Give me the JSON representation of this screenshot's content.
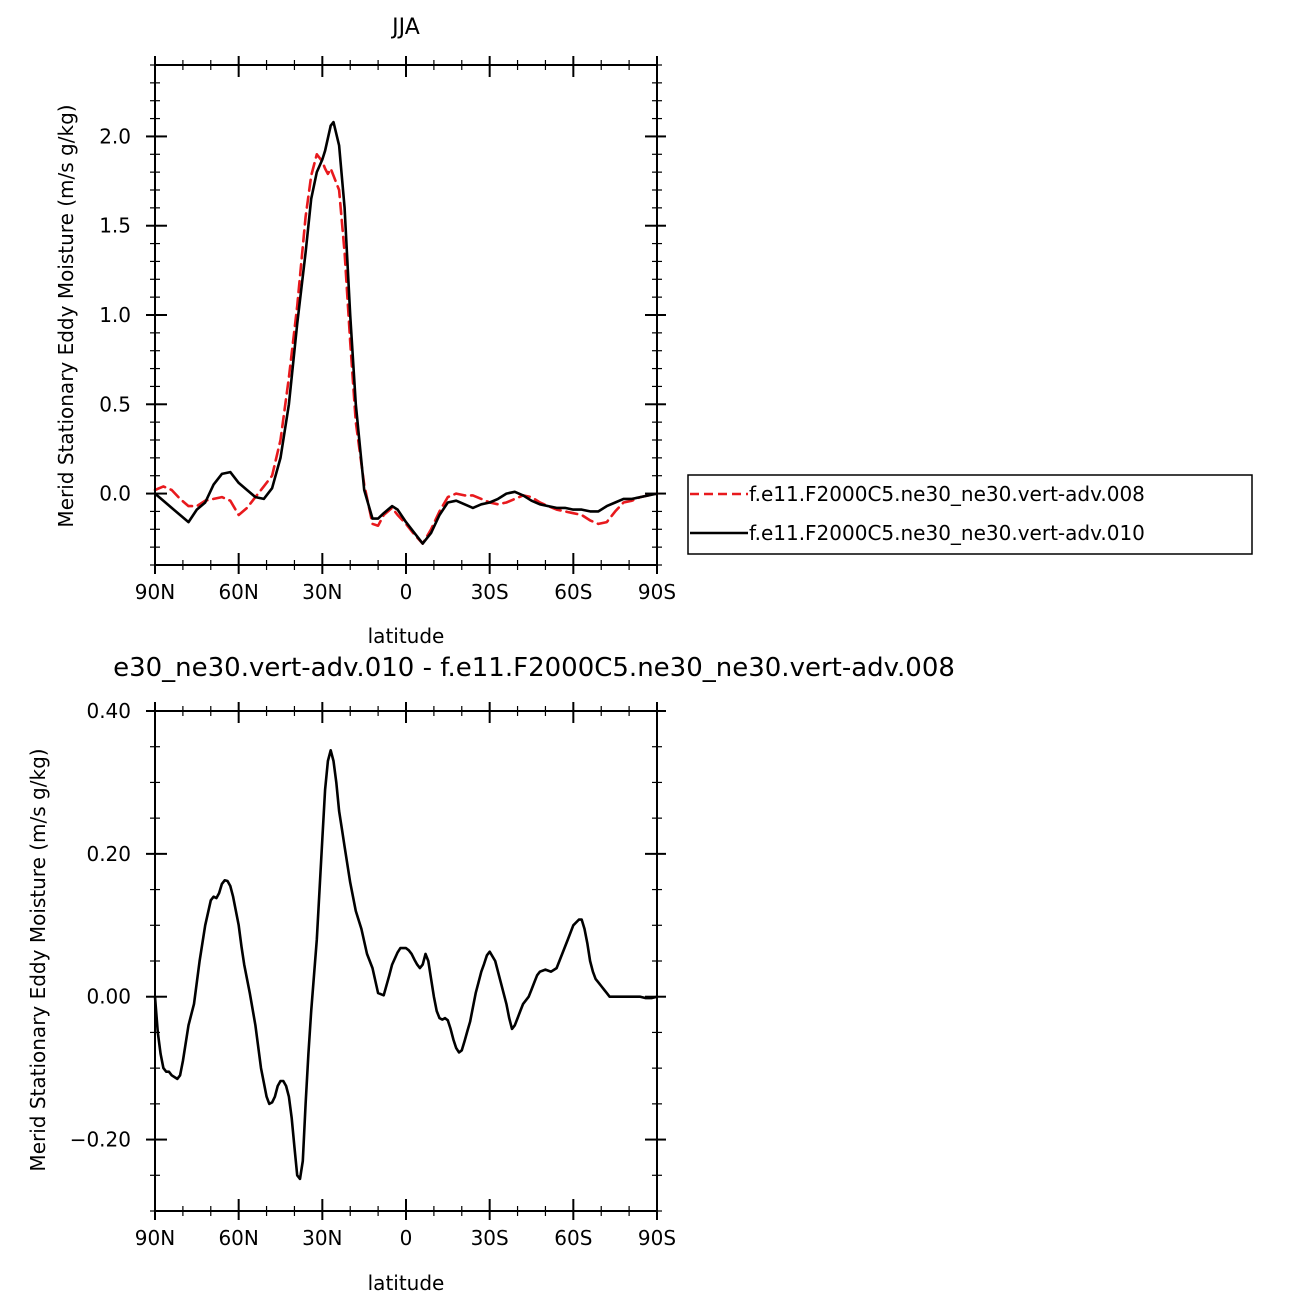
{
  "chart_data": [
    {
      "type": "line",
      "title": "JJA",
      "xlabel": "latitude",
      "ylabel": "Merid Stationary Eddy Moisture (m/s g/kg)",
      "xlim": [
        90,
        -90
      ],
      "ylim": [
        -0.4,
        2.4
      ],
      "x_ticks": [
        {
          "value": 90,
          "label": "90N"
        },
        {
          "value": 60,
          "label": "60N"
        },
        {
          "value": 30,
          "label": "30N"
        },
        {
          "value": 0,
          "label": "0"
        },
        {
          "value": -30,
          "label": "30S"
        },
        {
          "value": -60,
          "label": "60S"
        },
        {
          "value": -90,
          "label": "90S"
        }
      ],
      "y_ticks": [
        {
          "value": 0.0,
          "label": "0.0"
        },
        {
          "value": 0.5,
          "label": "0.5"
        },
        {
          "value": 1.0,
          "label": "1.0"
        },
        {
          "value": 1.5,
          "label": "1.5"
        },
        {
          "value": 2.0,
          "label": "2.0"
        }
      ],
      "legend": "right",
      "series": [
        {
          "name": "f.e11.F2000C5.ne30_ne30.vert-adv.008",
          "color": "#e8191d",
          "dash": "dashed",
          "x": [
            90,
            87,
            84,
            81,
            78,
            75,
            72,
            69,
            66,
            63,
            60,
            57,
            54,
            51,
            48,
            45,
            42,
            39,
            36,
            34,
            32,
            30,
            29,
            28,
            27,
            26,
            24,
            22,
            20,
            18,
            15,
            12,
            10,
            8,
            5,
            3,
            0,
            -3,
            -6,
            -9,
            -12,
            -15,
            -18,
            -21,
            -24,
            -27,
            -30,
            -33,
            -36,
            -39,
            -42,
            -45,
            -48,
            -51,
            -54,
            -57,
            -60,
            -63,
            -66,
            -69,
            -72,
            -75,
            -78,
            -81,
            -84,
            -87,
            -90
          ],
          "values": [
            0.02,
            0.04,
            0.02,
            -0.03,
            -0.07,
            -0.07,
            -0.04,
            -0.03,
            -0.02,
            -0.04,
            -0.12,
            -0.08,
            -0.02,
            0.04,
            0.1,
            0.3,
            0.65,
            1.05,
            1.55,
            1.78,
            1.9,
            1.86,
            1.82,
            1.79,
            1.82,
            1.78,
            1.7,
            1.35,
            0.85,
            0.4,
            0.05,
            -0.17,
            -0.18,
            -0.12,
            -0.08,
            -0.12,
            -0.17,
            -0.23,
            -0.28,
            -0.2,
            -0.1,
            -0.02,
            0.0,
            -0.01,
            -0.01,
            -0.03,
            -0.05,
            -0.06,
            -0.05,
            -0.03,
            -0.01,
            -0.02,
            -0.05,
            -0.07,
            -0.09,
            -0.1,
            -0.11,
            -0.12,
            -0.15,
            -0.17,
            -0.16,
            -0.1,
            -0.05,
            -0.04,
            -0.02,
            -0.01,
            0.0
          ]
        },
        {
          "name": "f.e11.F2000C5.ne30_ne30.vert-adv.010",
          "color": "#000000",
          "dash": "solid",
          "x": [
            90,
            87,
            84,
            81,
            78,
            75,
            72,
            69,
            66,
            63,
            60,
            57,
            54,
            51,
            48,
            45,
            42,
            39,
            36,
            34,
            32,
            30,
            29,
            28,
            27,
            26,
            24,
            22,
            20,
            18,
            15,
            12,
            10,
            8,
            5,
            3,
            0,
            -3,
            -6,
            -9,
            -12,
            -15,
            -18,
            -21,
            -24,
            -27,
            -30,
            -33,
            -36,
            -39,
            -42,
            -45,
            -48,
            -51,
            -54,
            -57,
            -60,
            -63,
            -66,
            -69,
            -72,
            -75,
            -78,
            -81,
            -84,
            -87,
            -90
          ],
          "values": [
            0.0,
            -0.04,
            -0.08,
            -0.12,
            -0.16,
            -0.09,
            -0.05,
            0.05,
            0.11,
            0.12,
            0.06,
            0.02,
            -0.02,
            -0.03,
            0.03,
            0.2,
            0.5,
            0.95,
            1.35,
            1.65,
            1.8,
            1.87,
            1.92,
            1.99,
            2.06,
            2.08,
            1.95,
            1.6,
            1.0,
            0.5,
            0.02,
            -0.14,
            -0.14,
            -0.11,
            -0.07,
            -0.09,
            -0.16,
            -0.22,
            -0.28,
            -0.22,
            -0.12,
            -0.05,
            -0.04,
            -0.06,
            -0.08,
            -0.06,
            -0.05,
            -0.03,
            0.0,
            0.01,
            -0.01,
            -0.04,
            -0.06,
            -0.07,
            -0.08,
            -0.08,
            -0.09,
            -0.09,
            -0.1,
            -0.1,
            -0.07,
            -0.05,
            -0.03,
            -0.03,
            -0.02,
            -0.01,
            0.0
          ]
        }
      ]
    },
    {
      "type": "line",
      "title": "e30_ne30.vert-adv.010 - f.e11.F2000C5.ne30_ne30.vert-adv.008",
      "xlabel": "latitude",
      "ylabel": "Merid Stationary Eddy Moisture (m/s g/kg)",
      "xlim": [
        90,
        -90
      ],
      "ylim": [
        -0.3,
        0.4
      ],
      "x_ticks": [
        {
          "value": 90,
          "label": "90N"
        },
        {
          "value": 60,
          "label": "60N"
        },
        {
          "value": 30,
          "label": "30N"
        },
        {
          "value": 0,
          "label": "0"
        },
        {
          "value": -30,
          "label": "30S"
        },
        {
          "value": -60,
          "label": "60S"
        },
        {
          "value": -90,
          "label": "90S"
        }
      ],
      "y_ticks": [
        {
          "value": -0.2,
          "label": "-0.20"
        },
        {
          "value": 0.0,
          "label": "0.00"
        },
        {
          "value": 0.2,
          "label": "0.20"
        },
        {
          "value": 0.4,
          "label": "0.40"
        }
      ],
      "series": [
        {
          "color": "#000000",
          "dash": "solid",
          "x": [
            90,
            89,
            88,
            87,
            86,
            85,
            84,
            82,
            81,
            80,
            78,
            76,
            74,
            72,
            70,
            69,
            68,
            67,
            66,
            65,
            64,
            63,
            62,
            61,
            60,
            59,
            58,
            57,
            56,
            54,
            52,
            50,
            49,
            48,
            47,
            46,
            45,
            44,
            43,
            42,
            41,
            40,
            39,
            38,
            37,
            36,
            35,
            34,
            32,
            30,
            29,
            28,
            27,
            26,
            25,
            24,
            23,
            22,
            20,
            18,
            16,
            14,
            12,
            10,
            8,
            6,
            5,
            3,
            2,
            0,
            -1,
            -2,
            -3,
            -4,
            -5,
            -6,
            -7,
            -8,
            -9,
            -10,
            -11,
            -12,
            -13,
            -14,
            -15,
            -16,
            -17,
            -18,
            -19,
            -20,
            -21,
            -22,
            -23,
            -24,
            -25,
            -26,
            -27,
            -28,
            -29,
            -30,
            -32,
            -34,
            -36,
            -37,
            -38,
            -39,
            -40,
            -41,
            -42,
            -43,
            -44,
            -45,
            -46,
            -47,
            -48,
            -50,
            -52,
            -54,
            -55,
            -56,
            -58,
            -60,
            -62,
            -63,
            -64,
            -65,
            -66,
            -67,
            -68,
            -69,
            -70,
            -71,
            -72,
            -73,
            -74,
            -76,
            -78,
            -80,
            -82,
            -84,
            -86,
            -88,
            -90
          ],
          "values": [
            0.0,
            -0.05,
            -0.08,
            -0.1,
            -0.105,
            -0.105,
            -0.11,
            -0.115,
            -0.11,
            -0.09,
            -0.04,
            -0.01,
            0.05,
            0.1,
            0.135,
            0.14,
            0.138,
            0.145,
            0.158,
            0.163,
            0.162,
            0.155,
            0.14,
            0.12,
            0.1,
            0.07,
            0.045,
            0.025,
            0.005,
            -0.04,
            -0.1,
            -0.14,
            -0.15,
            -0.148,
            -0.14,
            -0.125,
            -0.118,
            -0.118,
            -0.125,
            -0.14,
            -0.17,
            -0.21,
            -0.25,
            -0.255,
            -0.23,
            -0.15,
            -0.08,
            -0.02,
            0.08,
            0.22,
            0.29,
            0.33,
            0.345,
            0.33,
            0.3,
            0.26,
            0.235,
            0.21,
            0.16,
            0.12,
            0.095,
            0.06,
            0.04,
            0.005,
            0.002,
            0.03,
            0.045,
            0.062,
            0.068,
            0.068,
            0.065,
            0.06,
            0.052,
            0.045,
            0.04,
            0.045,
            0.06,
            0.05,
            0.025,
            0.0,
            -0.02,
            -0.03,
            -0.032,
            -0.03,
            -0.033,
            -0.045,
            -0.06,
            -0.072,
            -0.078,
            -0.075,
            -0.062,
            -0.048,
            -0.035,
            -0.015,
            0.005,
            0.02,
            0.035,
            0.046,
            0.058,
            0.063,
            0.05,
            0.02,
            -0.01,
            -0.03,
            -0.045,
            -0.04,
            -0.03,
            -0.02,
            -0.01,
            -0.005,
            0.0,
            0.01,
            0.02,
            0.03,
            0.035,
            0.038,
            0.035,
            0.04,
            0.05,
            0.06,
            0.08,
            0.1,
            0.108,
            0.108,
            0.095,
            0.075,
            0.05,
            0.035,
            0.025,
            0.02,
            0.015,
            0.01,
            0.005,
            0.0,
            0.0,
            0.0,
            0.0,
            0.0,
            0.0,
            0.0,
            -0.002,
            -0.002,
            0.0
          ]
        }
      ]
    }
  ]
}
